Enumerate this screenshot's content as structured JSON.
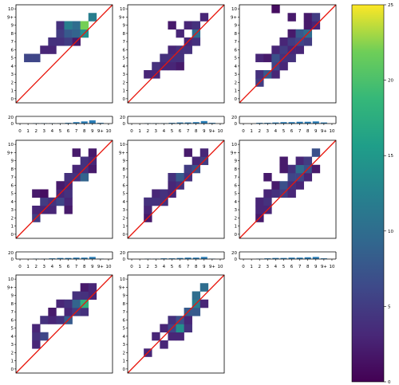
{
  "chart_data": {
    "type": "heatmap",
    "description_levels": "counts (0-10, 9+ grouped) heatmap with y=x reference line and marginal bar chart",
    "tick_labels": [
      "0",
      "1",
      "2",
      "3",
      "4",
      "5",
      "6",
      "7",
      "8",
      "9",
      "9+",
      "10"
    ],
    "heatmap_ticks_y": [
      "0",
      "1",
      "2",
      "3",
      "4",
      "5",
      "6",
      "7",
      "8",
      "9",
      "9+",
      "10"
    ],
    "bar_yticks": [
      "20",
      "0"
    ],
    "bar_ylim": [
      0,
      20
    ],
    "diagonal_color": "#e8160c",
    "bar_color": "#2c7fb8",
    "colorbar": {
      "min": 0,
      "max": 25,
      "ticks": [
        "0",
        "5",
        "10",
        "15",
        "20",
        "25"
      ],
      "colormap": "viridis"
    },
    "panels": [
      {
        "cells": [
          [
            1,
            5,
            6
          ],
          [
            2,
            5,
            6
          ],
          [
            3,
            6,
            3
          ],
          [
            4,
            6,
            3
          ],
          [
            4,
            7,
            4
          ],
          [
            5,
            7,
            4
          ],
          [
            5,
            8,
            5
          ],
          [
            5,
            9,
            4
          ],
          [
            6,
            7,
            5
          ],
          [
            6,
            8,
            8
          ],
          [
            6,
            9,
            12
          ],
          [
            7,
            7,
            2
          ],
          [
            7,
            8,
            9
          ],
          [
            7,
            9,
            10
          ],
          [
            8,
            8,
            14
          ],
          [
            8,
            9,
            22
          ],
          [
            9,
            10,
            12
          ]
        ],
        "bars": [
          0,
          0,
          1,
          1,
          1,
          1,
          2,
          4,
          6,
          9,
          2,
          0
        ]
      },
      {
        "cells": [
          [
            2,
            3,
            3
          ],
          [
            3,
            3,
            3
          ],
          [
            3,
            4,
            4
          ],
          [
            4,
            4,
            3
          ],
          [
            4,
            5,
            4
          ],
          [
            5,
            4,
            3
          ],
          [
            5,
            5,
            4
          ],
          [
            5,
            6,
            3
          ],
          [
            6,
            4,
            2
          ],
          [
            6,
            5,
            4
          ],
          [
            6,
            6,
            4
          ],
          [
            6,
            8,
            3
          ],
          [
            5,
            9,
            2
          ],
          [
            7,
            6,
            4
          ],
          [
            7,
            7,
            3
          ],
          [
            7,
            9,
            3
          ],
          [
            8,
            7,
            4
          ],
          [
            8,
            8,
            10
          ],
          [
            8,
            9,
            4
          ],
          [
            9,
            10,
            3
          ]
        ],
        "bars": [
          0,
          0,
          1,
          1,
          1,
          2,
          3,
          3,
          4,
          7,
          2,
          0
        ]
      },
      {
        "cells": [
          [
            2,
            2,
            5
          ],
          [
            2,
            3,
            4
          ],
          [
            3,
            3,
            8
          ],
          [
            4,
            3,
            3
          ],
          [
            2,
            5,
            3
          ],
          [
            3,
            5,
            2
          ],
          [
            4,
            4,
            6
          ],
          [
            4,
            5,
            7
          ],
          [
            4,
            6,
            3
          ],
          [
            5,
            4,
            3
          ],
          [
            5,
            5,
            4
          ],
          [
            5,
            6,
            5
          ],
          [
            5,
            7,
            3
          ],
          [
            6,
            5,
            4
          ],
          [
            6,
            6,
            3
          ],
          [
            6,
            7,
            5
          ],
          [
            6,
            8,
            2
          ],
          [
            7,
            6,
            3
          ],
          [
            7,
            7,
            6
          ],
          [
            7,
            8,
            8
          ],
          [
            8,
            7,
            5
          ],
          [
            8,
            8,
            10
          ],
          [
            8,
            9,
            2
          ],
          [
            8,
            10,
            2
          ],
          [
            9,
            9,
            3
          ],
          [
            9,
            10,
            5
          ],
          [
            4,
            11,
            1
          ],
          [
            6,
            10,
            2
          ]
        ],
        "bars": [
          0,
          0,
          2,
          2,
          3,
          4,
          4,
          5,
          5,
          6,
          3,
          0
        ]
      },
      {
        "cells": [
          [
            2,
            2,
            5
          ],
          [
            2,
            3,
            3
          ],
          [
            3,
            3,
            3
          ],
          [
            4,
            3,
            3
          ],
          [
            3,
            4,
            5
          ],
          [
            4,
            4,
            4
          ],
          [
            5,
            4,
            6
          ],
          [
            5,
            5,
            3
          ],
          [
            6,
            4,
            3
          ],
          [
            6,
            3,
            2
          ],
          [
            6,
            5,
            4
          ],
          [
            6,
            6,
            3
          ],
          [
            5,
            6,
            2
          ],
          [
            2,
            5,
            2
          ],
          [
            3,
            5,
            1
          ],
          [
            6,
            7,
            4
          ],
          [
            7,
            7,
            4
          ],
          [
            7,
            8,
            3
          ],
          [
            8,
            7,
            9
          ],
          [
            8,
            8,
            4
          ],
          [
            8,
            9,
            4
          ],
          [
            9,
            8,
            2
          ],
          [
            9,
            9,
            3
          ],
          [
            9,
            10,
            2
          ],
          [
            7,
            10,
            2
          ]
        ],
        "bars": [
          0,
          0,
          1,
          1,
          2,
          3,
          3,
          4,
          4,
          6,
          1,
          0
        ]
      },
      {
        "cells": [
          [
            2,
            2,
            2
          ],
          [
            2,
            3,
            3
          ],
          [
            2,
            4,
            4
          ],
          [
            3,
            4,
            4
          ],
          [
            4,
            4,
            4
          ],
          [
            3,
            5,
            3
          ],
          [
            4,
            5,
            4
          ],
          [
            5,
            5,
            3
          ],
          [
            5,
            6,
            3
          ],
          [
            6,
            6,
            4
          ],
          [
            5,
            7,
            4
          ],
          [
            6,
            7,
            8
          ],
          [
            7,
            7,
            4
          ],
          [
            7,
            8,
            5
          ],
          [
            8,
            8,
            7
          ],
          [
            8,
            9,
            3
          ],
          [
            9,
            9,
            5
          ],
          [
            9,
            10,
            3
          ],
          [
            7,
            10,
            2
          ]
        ],
        "bars": [
          0,
          0,
          1,
          1,
          2,
          2,
          3,
          4,
          4,
          6,
          1,
          0
        ]
      },
      {
        "cells": [
          [
            2,
            2,
            2
          ],
          [
            2,
            3,
            3
          ],
          [
            2,
            4,
            3
          ],
          [
            3,
            4,
            4
          ],
          [
            3,
            3,
            3
          ],
          [
            3,
            5,
            3
          ],
          [
            4,
            5,
            4
          ],
          [
            4,
            6,
            2
          ],
          [
            3,
            7,
            2
          ],
          [
            5,
            5,
            5
          ],
          [
            5,
            6,
            7
          ],
          [
            6,
            5,
            3
          ],
          [
            6,
            6,
            4
          ],
          [
            6,
            7,
            6
          ],
          [
            6,
            8,
            4
          ],
          [
            7,
            6,
            3
          ],
          [
            7,
            7,
            6
          ],
          [
            7,
            8,
            10
          ],
          [
            7,
            9,
            3
          ],
          [
            8,
            7,
            3
          ],
          [
            8,
            8,
            7
          ],
          [
            8,
            9,
            5
          ],
          [
            9,
            8,
            2
          ],
          [
            9,
            10,
            7
          ],
          [
            5,
            9,
            2
          ],
          [
            5,
            8,
            2
          ]
        ],
        "bars": [
          0,
          0,
          1,
          2,
          3,
          3,
          4,
          4,
          5,
          6,
          2,
          0
        ]
      },
      {
        "cells": [
          [
            2,
            3,
            3
          ],
          [
            2,
            4,
            4
          ],
          [
            2,
            5,
            3
          ],
          [
            3,
            4,
            6
          ],
          [
            3,
            6,
            4
          ],
          [
            4,
            6,
            3
          ],
          [
            4,
            7,
            2
          ],
          [
            5,
            6,
            4
          ],
          [
            5,
            8,
            3
          ],
          [
            6,
            6,
            8
          ],
          [
            6,
            7,
            3
          ],
          [
            6,
            8,
            4
          ],
          [
            7,
            7,
            5
          ],
          [
            7,
            8,
            9
          ],
          [
            7,
            9,
            4
          ],
          [
            8,
            7,
            4
          ],
          [
            8,
            8,
            18
          ],
          [
            8,
            9,
            4
          ],
          [
            8,
            10,
            2
          ],
          [
            9,
            9,
            3
          ],
          [
            9,
            10,
            3
          ]
        ],
        "bars": [
          0,
          0,
          1,
          1,
          1,
          2,
          3,
          3,
          4,
          6,
          1,
          0
        ]
      },
      {
        "cells": [
          [
            2,
            2,
            3
          ],
          [
            3,
            4,
            3
          ],
          [
            4,
            3,
            3
          ],
          [
            4,
            5,
            3
          ],
          [
            5,
            4,
            3
          ],
          [
            5,
            5,
            6
          ],
          [
            5,
            6,
            4
          ],
          [
            6,
            4,
            3
          ],
          [
            6,
            5,
            14
          ],
          [
            6,
            6,
            7
          ],
          [
            7,
            5,
            4
          ],
          [
            7,
            6,
            3
          ],
          [
            7,
            7,
            8
          ],
          [
            8,
            7,
            8
          ],
          [
            8,
            8,
            12
          ],
          [
            9,
            8,
            3
          ],
          [
            8,
            9,
            10
          ],
          [
            9,
            10,
            10
          ]
        ],
        "bars": [
          0,
          0,
          1,
          1,
          1,
          1,
          3,
          3,
          4,
          6,
          1,
          0
        ]
      }
    ]
  }
}
